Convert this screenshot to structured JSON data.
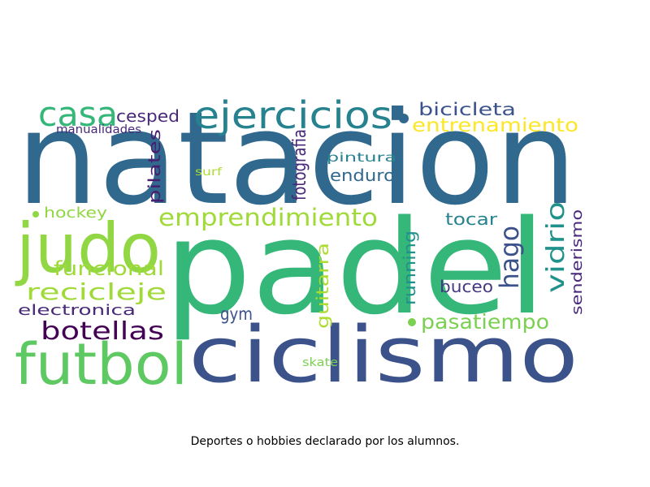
{
  "caption": "Deportes o hobbies declarado por los alumnos.",
  "words": [
    {
      "text": "natacion",
      "color": "#31688e"
    },
    {
      "text": "padel",
      "color": "#35b779"
    },
    {
      "text": "ciclismo",
      "color": "#3b528b"
    },
    {
      "text": "judo",
      "color": "#90d743"
    },
    {
      "text": "futbol",
      "color": "#5ec962"
    },
    {
      "text": "ejercicios",
      "color": "#26828e"
    },
    {
      "text": "casa",
      "color": "#35b779"
    },
    {
      "text": "emprendimiento",
      "color": "#a0da39"
    },
    {
      "text": "entrenamiento",
      "color": "#fde725"
    },
    {
      "text": "bicicleta",
      "color": "#3b528b"
    },
    {
      "text": "cesped",
      "color": "#482878"
    },
    {
      "text": "manualidades",
      "color": "#482878"
    },
    {
      "text": "pilates",
      "color": "#481f70"
    },
    {
      "text": "pintura",
      "color": "#26828e"
    },
    {
      "text": "fotografia",
      "color": "#482878"
    },
    {
      "text": "surf",
      "color": "#addc30"
    },
    {
      "text": "enduro",
      "color": "#31688e"
    },
    {
      "text": "hockey",
      "color": "#90d743"
    },
    {
      "text": "funcional",
      "color": "#a0da39"
    },
    {
      "text": "recicleje",
      "color": "#a0da39"
    },
    {
      "text": "electronica",
      "color": "#482878"
    },
    {
      "text": "botellas",
      "color": "#440154"
    },
    {
      "text": "gym",
      "color": "#3b528b"
    },
    {
      "text": "guitarra",
      "color": "#addc30"
    },
    {
      "text": "running",
      "color": "#21918c"
    },
    {
      "text": "tocar",
      "color": "#26828e"
    },
    {
      "text": "hago",
      "color": "#3b528b"
    },
    {
      "text": "vidrio",
      "color": "#21918c"
    },
    {
      "text": "senderismo",
      "color": "#482878"
    },
    {
      "text": "buceo",
      "color": "#443983"
    },
    {
      "text": "pasatiempo",
      "color": "#7ad151"
    },
    {
      "text": "skate",
      "color": "#7ad151"
    },
    {
      "text": "dot1",
      "color": "#31688e"
    },
    {
      "text": "dot2",
      "color": "#7ad151"
    },
    {
      "text": "dot3",
      "color": "#90d743"
    }
  ]
}
